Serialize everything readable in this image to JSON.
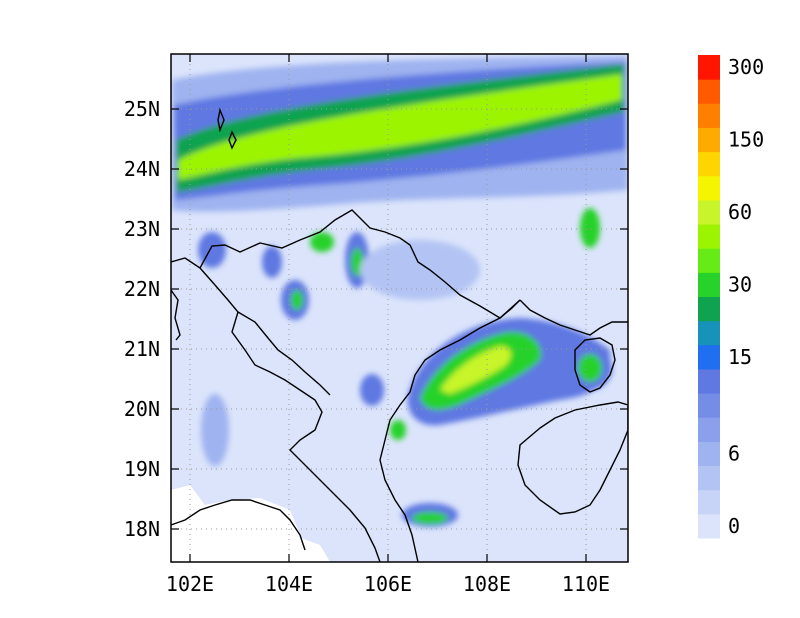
{
  "map": {
    "x_ticks": [
      "102E",
      "104E",
      "106E",
      "108E",
      "110E"
    ],
    "y_ticks": [
      "25N",
      "24N",
      "23N",
      "22N",
      "21N",
      "20N",
      "19N",
      "18N"
    ],
    "extent": {
      "lon": [
        101.7,
        110.8
      ],
      "lat": [
        17.4,
        25.9
      ]
    },
    "grid": "dotted"
  },
  "colorbar": {
    "colors": [
      "#dbe4fb",
      "#c7d4f8",
      "#b3c4f4",
      "#9fb3f0",
      "#8aa0ec",
      "#758de6",
      "#5f78e2",
      "#1f6ff0",
      "#1792b8",
      "#10a34f",
      "#27d22b",
      "#66eb16",
      "#9cf400",
      "#c7f52a",
      "#f5f500",
      "#ffd500",
      "#ffaa00",
      "#ff8000",
      "#ff5a00",
      "#ff1500"
    ],
    "labels": [
      {
        "text": "0",
        "index": 0
      },
      {
        "text": "6",
        "index": 3
      },
      {
        "text": "15",
        "index": 7
      },
      {
        "text": "30",
        "index": 10
      },
      {
        "text": "60",
        "index": 13
      },
      {
        "text": "150",
        "index": 16
      },
      {
        "text": "300",
        "index": 19
      }
    ]
  }
}
